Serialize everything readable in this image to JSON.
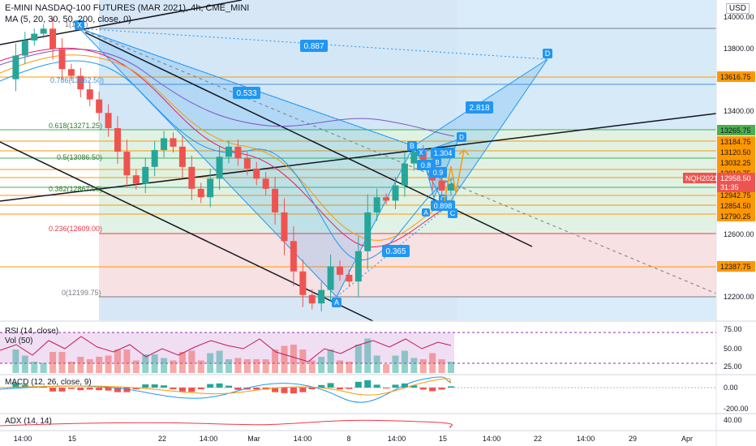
{
  "header": {
    "title": "E-MINI NASDAQ-100 FUTURES (MAR 2021), 4h, CME_MINI",
    "ma_label": "MA (5, 20, 30, 50, 200, close, 0)",
    "currency": "USD"
  },
  "price_axis": {
    "ticks": [
      "14000.00",
      "13800.00",
      "13400.00",
      "12600.00",
      "12200.00"
    ],
    "level_labels": [
      "13616.75",
      "13265.75",
      "13184.75",
      "13120.50",
      "13032.25",
      "13010.75",
      "12942.75",
      "12854.50",
      "12790.25",
      "12387.75"
    ],
    "current_symbol": "NQH2021",
    "current_price": "12958.50",
    "countdown": "31:35"
  },
  "time_axis": [
    "14:00",
    "15",
    "22",
    "14:00",
    "Mar",
    "14:00",
    "8",
    "14:00",
    "15",
    "14:00",
    "22",
    "14:00",
    "29",
    "Apr"
  ],
  "fib_labels": [
    "1(13...)",
    "0.786(13562.50)",
    "0.618(13271.25)",
    "0.5(13086.50)",
    "0.382(12867.00)",
    "0.236(12609.00)",
    "0(12199.75)"
  ],
  "pattern_labels": {
    "points": [
      "X",
      "A",
      "B",
      "C",
      "D"
    ],
    "ratios": [
      "0.887",
      "0.533",
      "2.818",
      "0.365"
    ],
    "small_points": [
      "X",
      "A",
      "B",
      "C",
      "D"
    ],
    "small_ratios": [
      "1.304",
      "0.8",
      "0.9",
      "0.898"
    ]
  },
  "indicators": {
    "rsi_label": "RSI (14, close)",
    "vol_label": "Vol (50)",
    "rsi_ticks": [
      "75.00",
      "50.00",
      "25.00"
    ],
    "macd_label": "MACD (12, 26, close, 9)",
    "macd_ticks": [
      "0.00",
      "-200.00"
    ],
    "adx_label": "ADX (14, 14)",
    "adx_ticks": [
      "40.00"
    ]
  },
  "colors": {
    "pattern_fill": "#2196f3",
    "up": "#26a69a",
    "down": "#ef5350",
    "fib_green": "#4caf50",
    "fib_red": "#f23645",
    "level_orange": "#ff9800",
    "rsi_band": "#e1bee7",
    "tag_bg": "#2196f3"
  },
  "chart_data": {
    "type": "candlestick",
    "ylim": [
      12150,
      14050
    ],
    "series": [
      {
        "values": [
          13580,
          13720,
          13810,
          13850,
          13880,
          13760,
          13640,
          13600,
          13520,
          13460,
          13380,
          13290,
          13150,
          13010,
          12960,
          13060,
          13160,
          13230,
          13180,
          13060,
          12930,
          12880,
          12990,
          13120,
          13180,
          13110,
          13050,
          12990,
          12930,
          12790,
          12620,
          12440,
          12300,
          12250,
          12330,
          12470,
          12420,
          12380,
          12560,
          12790,
          12880,
          12860,
          12950,
          13080,
          13150,
          13090,
          12980,
          12920,
          12960
        ]
      }
    ]
  }
}
